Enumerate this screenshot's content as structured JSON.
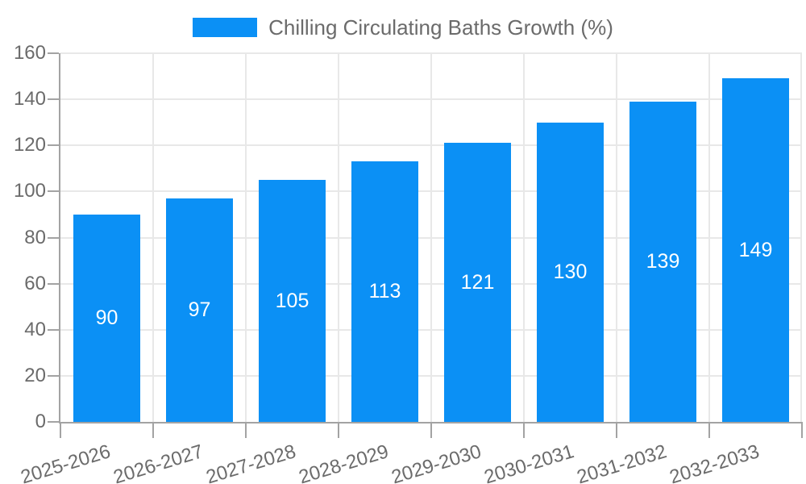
{
  "chart_data": {
    "type": "bar",
    "title": "Chilling Circulating Baths Growth (%)",
    "categories": [
      "2025-2026",
      "2026-2027",
      "2027-2028",
      "2028-2029",
      "2029-2030",
      "2030-2031",
      "2031-2032",
      "2032-2033"
    ],
    "values": [
      90,
      97,
      105,
      113,
      121,
      130,
      139,
      149
    ],
    "value_labels": [
      "90",
      "97",
      "105",
      "113",
      "121",
      "130",
      "139",
      "149"
    ],
    "xlabel": "",
    "ylabel": "",
    "ylim": [
      0,
      160
    ],
    "ytick_step": 20,
    "yticks": [
      0,
      20,
      40,
      60,
      80,
      100,
      120,
      140,
      160
    ],
    "grid": true,
    "legend_position": "top-center",
    "bar_color": "#0b90f5",
    "bar_label_color": "#ffffff",
    "axis_text_color": "#6b6b6b",
    "gridline_color": "#e8e8e8",
    "axis_line_color": "#a3a3a3"
  }
}
